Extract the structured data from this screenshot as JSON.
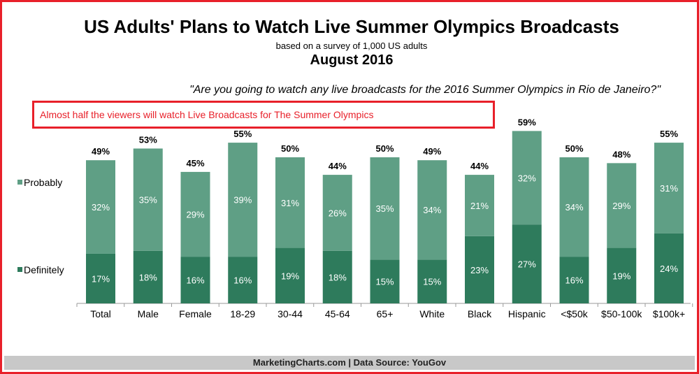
{
  "header": {
    "title": "US Adults' Plans to Watch Live Summer Olympics Broadcasts",
    "subtitle": "based on a survey of 1,000 US adults",
    "date": "August 2016"
  },
  "question": "\"Are you going to watch any live broadcasts for the 2016 Summer Olympics in Rio de Janeiro?\"",
  "callout": "Almost half the viewers will watch Live Broadcasts for The Summer Olympics",
  "footer": "MarketingCharts.com | Data Source: YouGov",
  "colors": {
    "probably": "#5f9f85",
    "definitely": "#2e7b5c",
    "accent": "#e8202a"
  },
  "chart_data": {
    "type": "bar",
    "stacked": true,
    "categories": [
      "Total",
      "Male",
      "Female",
      "18-29",
      "30-44",
      "45-64",
      "65+",
      "White",
      "Black",
      "Hispanic",
      "<$50k",
      "$50-100k",
      "$100k+"
    ],
    "series": [
      {
        "name": "Definitely",
        "values": [
          17,
          18,
          16,
          16,
          19,
          18,
          15,
          15,
          23,
          27,
          16,
          19,
          24
        ]
      },
      {
        "name": "Probably",
        "values": [
          32,
          35,
          29,
          39,
          31,
          26,
          35,
          34,
          21,
          32,
          34,
          29,
          31
        ]
      }
    ],
    "totals": [
      49,
      53,
      45,
      55,
      50,
      44,
      50,
      49,
      44,
      59,
      50,
      48,
      55
    ],
    "value_suffix": "%",
    "ylim": [
      0,
      60
    ],
    "legend_placement": "left",
    "grid": false
  }
}
